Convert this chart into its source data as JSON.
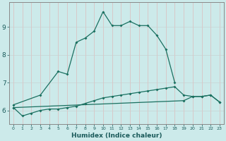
{
  "xlabel": "Humidex (Indice chaleur)",
  "bg_color": "#cceaea",
  "grid_color_h": "#c8dada",
  "grid_color_v": "#d8c8c8",
  "line_color": "#1a7060",
  "x": [
    0,
    1,
    2,
    3,
    4,
    5,
    6,
    7,
    8,
    9,
    10,
    11,
    12,
    13,
    14,
    15,
    16,
    17,
    18,
    19,
    20,
    21,
    22,
    23
  ],
  "line1": [
    6.2,
    null,
    null,
    6.55,
    null,
    7.4,
    7.3,
    8.45,
    8.6,
    8.85,
    9.55,
    9.05,
    9.05,
    9.2,
    9.05,
    9.05,
    8.7,
    8.2,
    7.0,
    null,
    null,
    null,
    null,
    null
  ],
  "line2": [
    6.1,
    5.8,
    5.9,
    6.0,
    6.05,
    6.05,
    6.1,
    6.15,
    6.25,
    6.35,
    6.45,
    6.5,
    6.55,
    6.6,
    6.65,
    6.7,
    6.75,
    6.8,
    6.85,
    6.55,
    6.5,
    6.5,
    6.55,
    6.3
  ],
  "line3": [
    6.1,
    null,
    null,
    null,
    null,
    null,
    null,
    null,
    null,
    null,
    null,
    null,
    null,
    null,
    null,
    null,
    null,
    null,
    null,
    6.35,
    6.5,
    6.5,
    6.55,
    6.3
  ],
  "ylim": [
    5.5,
    9.9
  ],
  "yticks": [
    6,
    7,
    8,
    9
  ],
  "xticks": [
    0,
    1,
    2,
    3,
    4,
    5,
    6,
    7,
    8,
    9,
    10,
    11,
    12,
    13,
    14,
    15,
    16,
    17,
    18,
    19,
    20,
    21,
    22,
    23
  ],
  "xticklabels": [
    "0",
    "1",
    "2",
    "3",
    "4",
    "5",
    "6",
    "7",
    "8",
    "9",
    "10",
    "11",
    "12",
    "13",
    "14",
    "15",
    "16",
    "17",
    "18",
    "19",
    "20",
    "21",
    "22",
    "23"
  ]
}
